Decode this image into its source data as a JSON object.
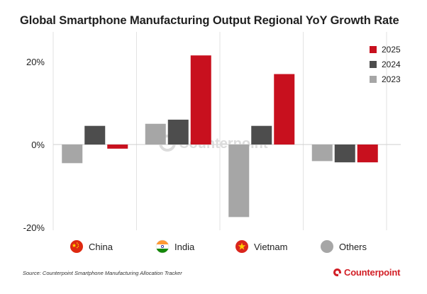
{
  "colors": {
    "accent": "#d21f26",
    "series_2025": "#c8101e",
    "series_2024": "#4d4d4d",
    "series_2023": "#a6a6a6",
    "watermark": "#dcdcdc",
    "grid": "#e2e2e2",
    "zero_line": "#cfcfcf"
  },
  "footer": {
    "source": "Source: Counterpoint Smartphone Manufacturing Allocation Tracker",
    "brand": "Counterpoint"
  },
  "watermark": {
    "text": "Counterpoint"
  },
  "legend_icons": [
    {
      "category": "China",
      "icon": "china-flag-icon"
    },
    {
      "category": "India",
      "icon": "india-flag-icon"
    },
    {
      "category": "Vietnam",
      "icon": "vietnam-flag-icon"
    },
    {
      "category": "Others",
      "icon": "grey-circle-icon"
    }
  ],
  "chart_data": {
    "type": "bar",
    "title": "Global Smartphone Manufacturing Output Regional YoY Growth Rate",
    "xlabel": "",
    "ylabel": "",
    "categories": [
      "China",
      "India",
      "Vietnam",
      "Others"
    ],
    "series": [
      {
        "name": "2023",
        "color": "#a6a6a6",
        "values": [
          -4.5,
          5.0,
          -17.5,
          -4.0
        ]
      },
      {
        "name": "2024",
        "color": "#4d4d4d",
        "values": [
          4.5,
          6.0,
          4.5,
          -4.3
        ]
      },
      {
        "name": "2025",
        "color": "#c8101e",
        "values": [
          -1.0,
          21.5,
          17.0,
          -4.3
        ]
      }
    ],
    "ylim": [
      -20,
      25
    ],
    "yticks": [
      20,
      0,
      -20
    ],
    "ytick_labels": [
      "20%",
      "0%",
      "-20%"
    ],
    "legend": {
      "placement": "top-right",
      "order": [
        "2025",
        "2024",
        "2023"
      ]
    },
    "grid": "vertical separators between categories"
  }
}
